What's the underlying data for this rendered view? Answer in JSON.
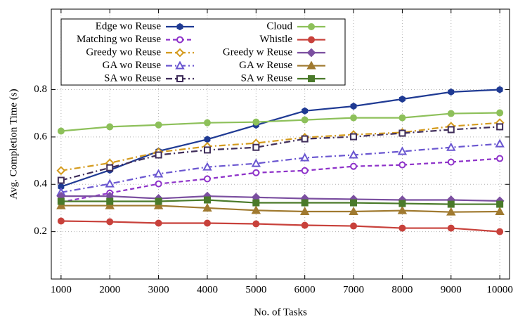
{
  "chart_data": {
    "type": "line",
    "xlabel": "No. of Tasks",
    "ylabel": "Avg. Completion Time (s)",
    "x": [
      1000,
      2000,
      3000,
      4000,
      5000,
      6000,
      7000,
      8000,
      9000,
      10000
    ],
    "xlim": [
      800,
      10200
    ],
    "xticks": [
      1000,
      2000,
      3000,
      4000,
      5000,
      6000,
      7000,
      8000,
      9000,
      10000
    ],
    "ylim": [
      0,
      1.14
    ],
    "yticks": [
      0.2,
      0.4,
      0.6,
      0.8
    ],
    "grid": true,
    "series": [
      {
        "name": "Edge wo Reuse",
        "color": "#1f3a93",
        "marker": "hexagon",
        "dash": "solid",
        "values": [
          0.39,
          0.46,
          0.54,
          0.59,
          0.65,
          0.71,
          0.73,
          0.76,
          0.79,
          0.8
        ]
      },
      {
        "name": "Matching wo Reuse",
        "color": "#8e32c9",
        "marker": "circle-open",
        "dash": "dashed",
        "values": [
          0.325,
          0.363,
          0.402,
          0.423,
          0.449,
          0.458,
          0.476,
          0.482,
          0.494,
          0.509
        ]
      },
      {
        "name": "Greedy wo Reuse",
        "color": "#d49a1c",
        "marker": "diamond-open",
        "dash": "dashdot",
        "values": [
          0.458,
          0.49,
          0.536,
          0.56,
          0.574,
          0.598,
          0.61,
          0.619,
          0.645,
          0.66
        ]
      },
      {
        "name": "GA wo Reuse",
        "color": "#6a56d0",
        "marker": "triangle-open",
        "dash": "dashdot",
        "values": [
          0.366,
          0.402,
          0.444,
          0.473,
          0.488,
          0.512,
          0.524,
          0.539,
          0.556,
          0.571
        ]
      },
      {
        "name": "SA wo Reuse",
        "color": "#3f2d5a",
        "marker": "square-open",
        "dash": "dashdot",
        "values": [
          0.417,
          0.47,
          0.524,
          0.545,
          0.556,
          0.592,
          0.601,
          0.616,
          0.631,
          0.643
        ]
      },
      {
        "name": "Cloud",
        "color": "#8dc05a",
        "marker": "circle",
        "dash": "solid",
        "values": [
          0.625,
          0.643,
          0.651,
          0.66,
          0.663,
          0.672,
          0.681,
          0.681,
          0.699,
          0.702
        ]
      },
      {
        "name": "Whistle",
        "color": "#c8413b",
        "marker": "circle",
        "dash": "solid",
        "values": [
          0.245,
          0.242,
          0.236,
          0.236,
          0.233,
          0.227,
          0.224,
          0.215,
          0.215,
          0.2
        ]
      },
      {
        "name": "Greedy w Reuse",
        "color": "#7b4fa0",
        "marker": "diamond",
        "dash": "solid",
        "values": [
          0.35,
          0.35,
          0.34,
          0.35,
          0.345,
          0.34,
          0.337,
          0.334,
          0.334,
          0.33
        ]
      },
      {
        "name": "GA w Reuse",
        "color": "#a07a30",
        "marker": "triangle",
        "dash": "solid",
        "values": [
          0.31,
          0.31,
          0.31,
          0.3,
          0.29,
          0.285,
          0.285,
          0.289,
          0.283,
          0.285
        ]
      },
      {
        "name": "SA w Reuse",
        "color": "#4a7a2a",
        "marker": "square",
        "dash": "solid",
        "values": [
          0.328,
          0.328,
          0.328,
          0.334,
          0.322,
          0.322,
          0.322,
          0.319,
          0.316,
          0.316
        ]
      }
    ]
  }
}
